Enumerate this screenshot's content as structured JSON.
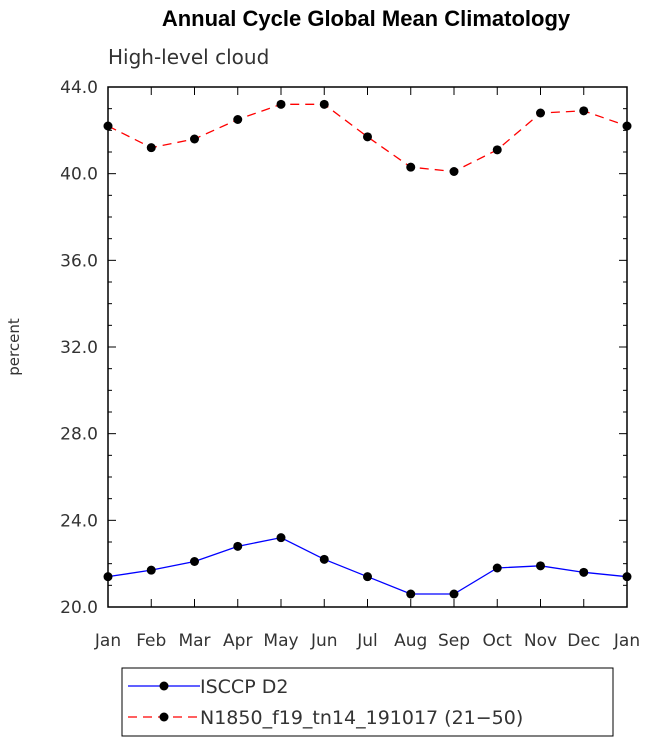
{
  "chart_data": {
    "type": "line",
    "title": "Annual Cycle Global Mean Climatology",
    "subtitle": "High-level cloud",
    "xlabel": "",
    "ylabel": "percent",
    "categories": [
      "Jan",
      "Feb",
      "Mar",
      "Apr",
      "May",
      "Jun",
      "Jul",
      "Aug",
      "Sep",
      "Oct",
      "Nov",
      "Dec",
      "Jan"
    ],
    "ylim": [
      20.0,
      44.0
    ],
    "yticks": [
      "20.0",
      "24.0",
      "28.0",
      "32.0",
      "36.0",
      "40.0",
      "44.0"
    ],
    "ytick_values": [
      20,
      24,
      28,
      32,
      36,
      40,
      44
    ],
    "series": [
      {
        "name": "ISCCP D2",
        "color": "#0000ff",
        "dash": "solid",
        "marker": "filled-circle",
        "values": [
          21.4,
          21.7,
          22.1,
          22.8,
          23.2,
          22.2,
          21.4,
          20.6,
          20.6,
          21.8,
          21.9,
          21.6,
          21.4
        ]
      },
      {
        "name": "N1850_f19_tn14_191017 (21−50)",
        "color": "#ff0000",
        "dash": "dashed",
        "marker": "filled-circle",
        "values": [
          42.2,
          41.2,
          41.6,
          42.5,
          43.2,
          43.2,
          41.7,
          40.3,
          40.1,
          41.1,
          42.8,
          42.9,
          42.2
        ]
      }
    ],
    "grid": false,
    "legend_position": "bottom"
  }
}
